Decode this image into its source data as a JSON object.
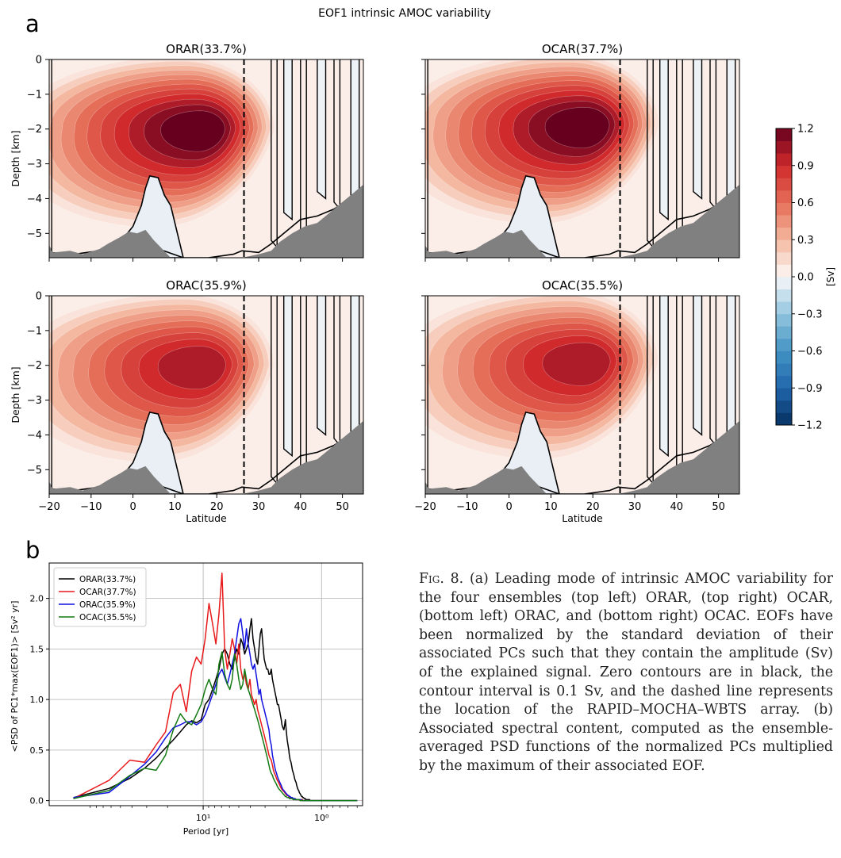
{
  "figure": {
    "panel_a_label": "a",
    "panel_b_label": "b",
    "suptitle": "EOF1 intrinsic AMOC variability"
  },
  "chart_data": [
    {
      "type": "heatmap",
      "title": "ORAR(33.7%)",
      "xlabel": "",
      "ylabel": "Depth [km]",
      "xlim": [
        -20,
        55
      ],
      "ylim": [
        -5.7,
        0
      ],
      "xticks": [
        "−20",
        "−10",
        "0",
        "10",
        "20",
        "30",
        "40",
        "50"
      ],
      "yticks": [
        "0",
        "−1",
        "−2",
        "−3",
        "−4",
        "−5"
      ],
      "cell_max": {
        "lat": 17,
        "depth": -2.0,
        "value": 1.2
      },
      "secondary_max": 1.0,
      "dashed_line_lat": 26.5,
      "zero_contour": "black"
    },
    {
      "type": "heatmap",
      "title": "OCAR(37.7%)",
      "xlabel": "",
      "ylabel": "",
      "xlim": [
        -20,
        55
      ],
      "ylim": [
        -5.7,
        0
      ],
      "xticks": [
        "−20",
        "−10",
        "0",
        "10",
        "20",
        "30",
        "40",
        "50"
      ],
      "yticks": [],
      "cell_max": {
        "lat": 19,
        "depth": -1.9,
        "value": 1.2
      },
      "dashed_line_lat": 26.5,
      "zero_contour": "black"
    },
    {
      "type": "heatmap",
      "title": "ORAC(35.9%)",
      "xlabel": "Latitude",
      "ylabel": "Depth [km]",
      "xlim": [
        -20,
        55
      ],
      "ylim": [
        -5.7,
        0
      ],
      "xticks": [
        "−20",
        "−10",
        "0",
        "10",
        "20",
        "30",
        "40",
        "50"
      ],
      "yticks": [
        "0",
        "−1",
        "−2",
        "−3",
        "−4",
        "−5"
      ],
      "cell_max": {
        "lat": 17,
        "depth": -2.0,
        "value": 1.0
      },
      "dashed_line_lat": 26.5,
      "zero_contour": "black"
    },
    {
      "type": "heatmap",
      "title": "OCAC(35.5%)",
      "xlabel": "Latitude",
      "ylabel": "",
      "xlim": [
        -20,
        55
      ],
      "ylim": [
        -5.7,
        0
      ],
      "xticks": [
        "−20",
        "−10",
        "0",
        "10",
        "20",
        "30",
        "40",
        "50"
      ],
      "yticks": [],
      "cell_max": {
        "lat": 19,
        "depth": -1.9,
        "value": 1.0
      },
      "dashed_line_lat": 26.5,
      "zero_contour": "black"
    },
    {
      "type": "colorbar",
      "label": "[Sv]",
      "range": [
        -1.2,
        1.2
      ],
      "interval": 0.1,
      "tick_values": [
        1.2,
        0.9,
        0.6,
        0.3,
        0.0,
        -0.3,
        -0.6,
        -0.9,
        -1.2
      ],
      "tick_labels": [
        "1.2",
        "0.9",
        "0.6",
        "0.3",
        "0.0",
        "−0.3",
        "−0.6",
        "−0.9",
        "−1.2"
      ],
      "colormap": "RdBu_r"
    },
    {
      "type": "line",
      "title": "",
      "xlabel": "Period [yr]",
      "ylabel": "<PSD of PC1*max(EOF1)> [Sv² yr]",
      "x_scale": "log",
      "x_direction": "period decreasing to the right",
      "xlim": [
        200,
        0.45
      ],
      "ylim": [
        -0.05,
        2.35
      ],
      "xticks": [
        {
          "value": 10,
          "label": "10¹"
        },
        {
          "value": 1,
          "label": "10⁰"
        }
      ],
      "yticks": [
        "0.0",
        "0.5",
        "1.0",
        "1.5",
        "2.0"
      ],
      "grid": true,
      "legend": "top-left",
      "x": [
        125,
        62.5,
        41.7,
        31.3,
        25.0,
        20.8,
        17.9,
        15.6,
        13.9,
        12.5,
        11.4,
        10.4,
        9.62,
        8.93,
        8.33,
        7.81,
        7.35,
        6.94,
        6.58,
        6.25,
        5.95,
        5.68,
        5.43,
        5.21,
        5.0,
        4.81,
        4.63,
        4.46,
        4.31,
        4.17,
        4.03,
        3.91,
        3.79,
        3.68,
        3.57,
        3.47,
        3.38,
        3.29,
        3.21,
        3.13,
        3.05,
        2.98,
        2.91,
        2.84,
        2.78,
        2.72,
        2.66,
        2.6,
        2.55,
        2.5,
        2.45,
        2.4,
        2.36,
        2.31,
        2.27,
        2.23,
        2.19,
        2.16,
        2.12,
        2.08,
        2.05,
        2.02,
        1.99,
        1.95,
        1.92,
        1.89,
        1.87,
        1.84,
        1.81,
        1.79,
        1.76,
        1.74,
        1.71,
        1.69,
        1.67,
        1.64,
        1.62,
        1.6,
        1.58,
        1.56,
        1.54,
        1.52,
        1.5,
        1.49,
        1.47,
        1.45,
        1.44,
        1.42,
        1.4,
        1.39,
        1.37,
        1.36,
        1.34,
        1.33,
        1.32,
        1.3,
        1.29,
        1.27,
        1.26,
        1.25,
        1.2,
        1.1,
        1.0,
        0.9,
        0.8,
        0.7,
        0.6,
        0.5
      ],
      "series": [
        {
          "name": "ORAR(33.7%)",
          "color": "#000000",
          "values": [
            0.03,
            0.12,
            0.22,
            0.32,
            0.42,
            0.52,
            0.6,
            0.68,
            0.75,
            0.79,
            0.77,
            0.8,
            0.95,
            1.0,
            1.1,
            1.2,
            1.3,
            1.45,
            1.5,
            1.45,
            1.35,
            1.3,
            1.4,
            1.5,
            1.45,
            1.6,
            1.55,
            1.45,
            1.5,
            1.55,
            1.7,
            1.8,
            1.6,
            1.5,
            1.4,
            1.35,
            1.5,
            1.65,
            1.7,
            1.55,
            1.4,
            1.35,
            1.3,
            1.3,
            1.25,
            1.25,
            1.3,
            1.2,
            1.15,
            1.1,
            1.05,
            1.0,
            0.95,
            0.95,
            0.9,
            0.85,
            0.8,
            0.75,
            0.72,
            0.7,
            0.75,
            0.8,
            0.7,
            0.6,
            0.55,
            0.5,
            0.45,
            0.4,
            0.38,
            0.35,
            0.3,
            0.28,
            0.25,
            0.22,
            0.2,
            0.18,
            0.15,
            0.13,
            0.11,
            0.1,
            0.08,
            0.07,
            0.06,
            0.05,
            0.04,
            0.04,
            0.03,
            0.03,
            0.02,
            0.02,
            0.02,
            0.01,
            0.01,
            0.01,
            0.01,
            0.01,
            0.01,
            0.01,
            0.01,
            0.0,
            0.0,
            0.0,
            0.0,
            0.0,
            0.0,
            0.0,
            0.0,
            0.0
          ]
        },
        {
          "name": "OCAR(37.7%)",
          "color": "#e8191b",
          "values": [
            0.02,
            0.2,
            0.4,
            0.38,
            0.55,
            0.68,
            1.07,
            1.15,
            0.88,
            1.28,
            1.42,
            1.35,
            1.6,
            1.95,
            1.75,
            1.55,
            1.85,
            2.25,
            1.5,
            1.3,
            1.45,
            1.6,
            1.5,
            1.35,
            1.55,
            1.3,
            1.2,
            1.25,
            1.15,
            1.1,
            1.2,
            1.05,
            1.0,
            0.95,
            1.0,
            0.9,
            0.85,
            0.8,
            0.75,
            0.7,
            0.65,
            0.6,
            0.55,
            0.5,
            0.45,
            0.42,
            0.4,
            0.35,
            0.3,
            0.27,
            0.25,
            0.22,
            0.2,
            0.18,
            0.16,
            0.14,
            0.12,
            0.11,
            0.1,
            0.09,
            0.08,
            0.07,
            0.06,
            0.05,
            0.05,
            0.04,
            0.04,
            0.03,
            0.03,
            0.03,
            0.02,
            0.02,
            0.02,
            0.02,
            0.02,
            0.01,
            0.01,
            0.01,
            0.01,
            0.01,
            0.01,
            0.01,
            0.01,
            0.01,
            0.01,
            0.01,
            0.0,
            0.0,
            0.0,
            0.0,
            0.0,
            0.0,
            0.0,
            0.0,
            0.0,
            0.0,
            0.0,
            0.0,
            0.0,
            0.0,
            0.0,
            0.0,
            0.0,
            0.0,
            0.0,
            0.0,
            0.0,
            0.0
          ]
        },
        {
          "name": "ORAC(35.9%)",
          "color": "#1111e0",
          "values": [
            0.03,
            0.08,
            0.24,
            0.36,
            0.48,
            0.62,
            0.72,
            0.75,
            0.78,
            0.78,
            0.75,
            0.78,
            0.85,
            0.95,
            1.05,
            1.15,
            1.25,
            1.3,
            1.22,
            1.15,
            1.25,
            1.35,
            1.45,
            1.6,
            1.75,
            1.8,
            1.65,
            1.5,
            1.7,
            1.55,
            1.45,
            1.35,
            1.3,
            1.35,
            1.25,
            1.15,
            1.05,
            1.1,
            1.0,
            0.95,
            0.9,
            0.85,
            0.8,
            0.75,
            0.7,
            0.6,
            0.55,
            0.45,
            0.4,
            0.35,
            0.3,
            0.27,
            0.24,
            0.21,
            0.19,
            0.17,
            0.15,
            0.13,
            0.11,
            0.1,
            0.09,
            0.08,
            0.07,
            0.06,
            0.05,
            0.05,
            0.04,
            0.04,
            0.03,
            0.03,
            0.03,
            0.02,
            0.02,
            0.02,
            0.02,
            0.01,
            0.01,
            0.01,
            0.01,
            0.01,
            0.01,
            0.01,
            0.01,
            0.01,
            0.0,
            0.0,
            0.0,
            0.0,
            0.0,
            0.0,
            0.0,
            0.0,
            0.0,
            0.0,
            0.0,
            0.0,
            0.0,
            0.0,
            0.0,
            0.0,
            0.0,
            0.0,
            0.0,
            0.0,
            0.0,
            0.0,
            0.0,
            0.0
          ]
        },
        {
          "name": "OCAC(35.5%)",
          "color": "#147a14",
          "values": [
            0.02,
            0.1,
            0.25,
            0.32,
            0.3,
            0.45,
            0.7,
            0.86,
            0.78,
            0.75,
            0.85,
            0.95,
            1.1,
            1.2,
            1.1,
            1.05,
            1.35,
            1.47,
            1.25,
            1.15,
            1.1,
            1.2,
            1.45,
            1.35,
            1.2,
            1.1,
            1.15,
            1.3,
            1.2,
            1.1,
            1.05,
            1.0,
            0.95,
            0.9,
            0.85,
            0.8,
            0.75,
            0.7,
            0.65,
            0.6,
            0.55,
            0.5,
            0.45,
            0.4,
            0.35,
            0.3,
            0.27,
            0.25,
            0.22,
            0.2,
            0.18,
            0.16,
            0.14,
            0.12,
            0.11,
            0.1,
            0.09,
            0.08,
            0.07,
            0.06,
            0.05,
            0.04,
            0.04,
            0.03,
            0.03,
            0.03,
            0.02,
            0.02,
            0.02,
            0.02,
            0.02,
            0.01,
            0.01,
            0.01,
            0.01,
            0.01,
            0.01,
            0.01,
            0.01,
            0.01,
            0.01,
            0.0,
            0.0,
            0.0,
            0.0,
            0.0,
            0.0,
            0.0,
            0.0,
            0.0,
            0.0,
            0.0,
            0.0,
            0.0,
            0.0,
            0.0,
            0.0,
            0.0,
            0.0,
            0.0,
            0.0,
            0.0,
            0.0,
            0.0,
            0.0,
            0.0,
            0.0,
            0.0
          ]
        }
      ]
    }
  ],
  "caption": {
    "label": "Fig. 8.",
    "text": "(a) Leading mode of intrinsic AMOC variability for the four ensembles (top left) ORAR, (top right) OCAR, (bottom left) ORAC, and (bottom right) OCAC. EOFs have been normalized by the standard deviation of their associated PCs such that they contain the amplitude (Sv) of the explained signal. Zero contours are in black, the contour interval is 0.1 Sv, and the dashed line represents the location of the RAPID–MOCHA–WBTS array. (b) Associated spectral content, computed as the ensemble-averaged PSD functions of the normalized PCs multiplied by the maximum of their associated EOF."
  },
  "colors": {
    "land": "#808080",
    "zero_contour": "#000000",
    "dashed_line": "#000000"
  }
}
